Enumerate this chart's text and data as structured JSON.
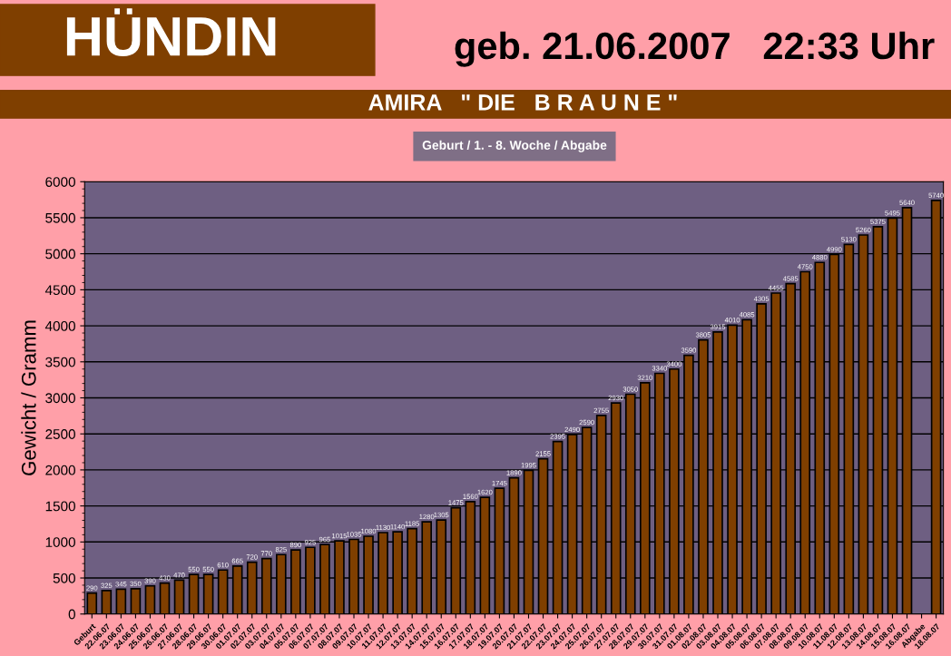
{
  "chart_data": {
    "type": "bar",
    "title": "HÜNDIN",
    "subtitle": "geb. 21.06.2007   22:33 Uhr",
    "annotations": [
      "AMIRA   \" DIE   B R A U N E \"",
      "Geburt / 1. - 8. Woche / Abgabe"
    ],
    "ylabel": "Gewicht / Gramm",
    "categories": [
      "Geburt",
      "22.06.07",
      "23.06.07",
      "24.06.07",
      "25.06.07",
      "26.06.07",
      "27.06.07",
      "28.06.07",
      "29.06.07",
      "30.06.07",
      "01.07.07",
      "02.07.07",
      "03.07.07",
      "04.07.07",
      "05.07.07",
      "06.07.07",
      "07.07.07",
      "08.07.07",
      "09.07.07",
      "10.07.07",
      "11.07.07",
      "12.07.07",
      "13.07.07",
      "14.07.07",
      "15.07.07",
      "16.07.07",
      "17.07.07",
      "18.07.07",
      "19.07.07",
      "20.07.07",
      "21.07.07",
      "22.07.07",
      "23.07.07",
      "24.07.07",
      "25.07.07",
      "26.07.07",
      "27.07.07",
      "28.07.07",
      "29.07.07",
      "30.07.07",
      "31.07.07",
      "01.08.07",
      "02.08.07",
      "03.08.07",
      "04.08.07",
      "05.08.07",
      "06.08.07",
      "07.08.07",
      "08.08.07",
      "09.08.07",
      "10.08.07",
      "11.08.07",
      "12.08.07",
      "13.08.07",
      "14.08.07",
      "15.08.07",
      "16.08.07",
      "Abgabe",
      "18.08.07"
    ],
    "values": [
      290,
      325,
      345,
      350,
      390,
      430,
      470,
      550,
      550,
      610,
      665,
      720,
      770,
      825,
      890,
      925,
      965,
      1015,
      1035,
      1080,
      1130,
      1140,
      1185,
      1280,
      1305,
      1475,
      1560,
      1620,
      1745,
      1890,
      1995,
      2155,
      2395,
      2490,
      2590,
      2755,
      2930,
      3050,
      3210,
      3340,
      3400,
      3590,
      3805,
      3915,
      4010,
      4085,
      4305,
      4455,
      4585,
      4750,
      4880,
      4990,
      5130,
      5260,
      5375,
      5495,
      5640,
      null,
      5740
    ],
    "color": "#7f3f00",
    "ylim": [
      0,
      6000
    ],
    "yticks": [
      0,
      500,
      1000,
      1500,
      2000,
      2500,
      3000,
      3500,
      4000,
      4500,
      5000,
      5500,
      6000
    ],
    "grid": "y",
    "data_labels": true,
    "legend": false
  }
}
